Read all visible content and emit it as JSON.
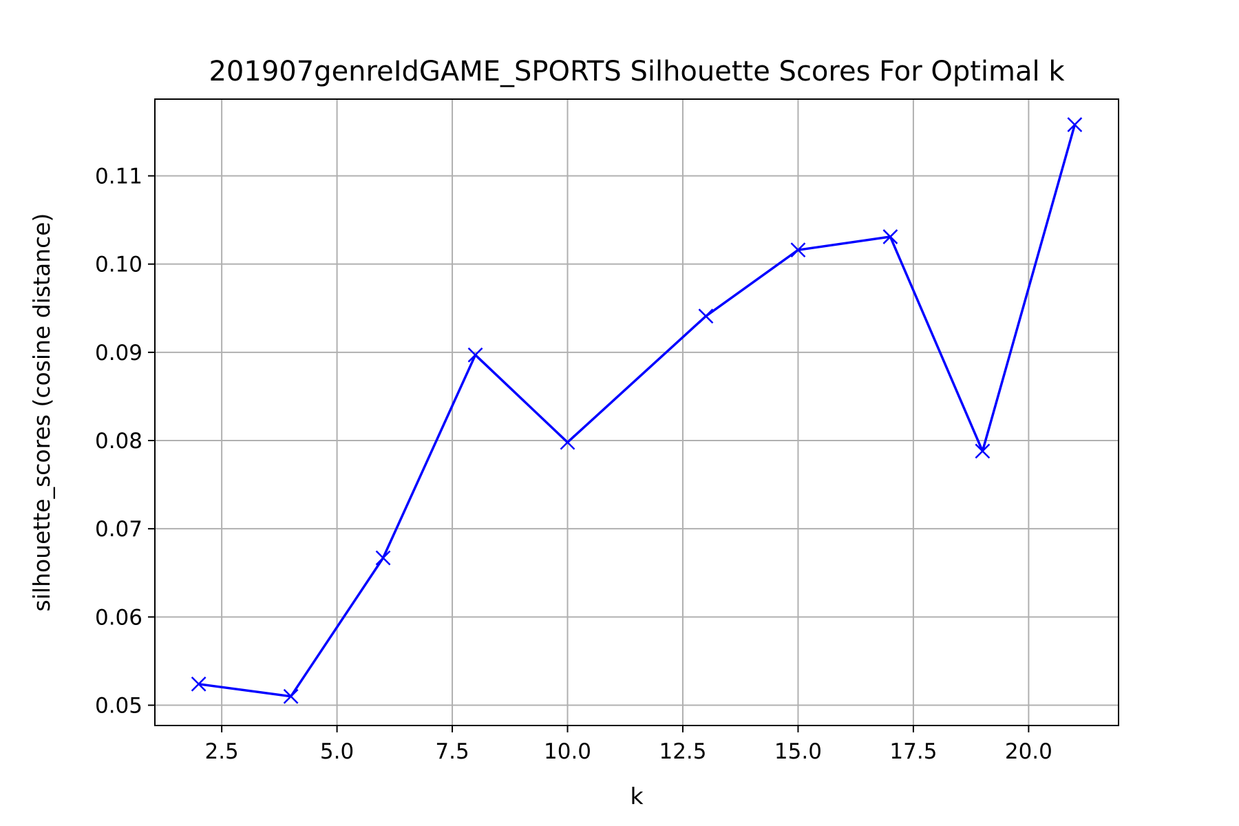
{
  "chart_data": {
    "type": "line",
    "title": "201907genreIdGAME_SPORTS Silhouette Scores For Optimal k",
    "xlabel": "k",
    "ylabel": "silhouette_scores (cosine distance)",
    "xlim": [
      1.05,
      21.95
    ],
    "ylim": [
      0.0477,
      0.1187
    ],
    "xticks": [
      "2.5",
      "5.0",
      "7.5",
      "10.0",
      "12.5",
      "15.0",
      "17.5",
      "20.0"
    ],
    "yticks": [
      "0.05",
      "0.06",
      "0.07",
      "0.08",
      "0.09",
      "0.10",
      "0.11"
    ],
    "grid": true,
    "marker": "x",
    "series": [
      {
        "color": "#0000ff",
        "x": [
          2,
          4,
          6,
          8,
          10,
          13,
          15,
          17,
          19,
          21
        ],
        "y": [
          0.0524,
          0.051,
          0.0667,
          0.0897,
          0.0798,
          0.0941,
          0.1016,
          0.1031,
          0.0788,
          0.1158
        ]
      }
    ]
  }
}
